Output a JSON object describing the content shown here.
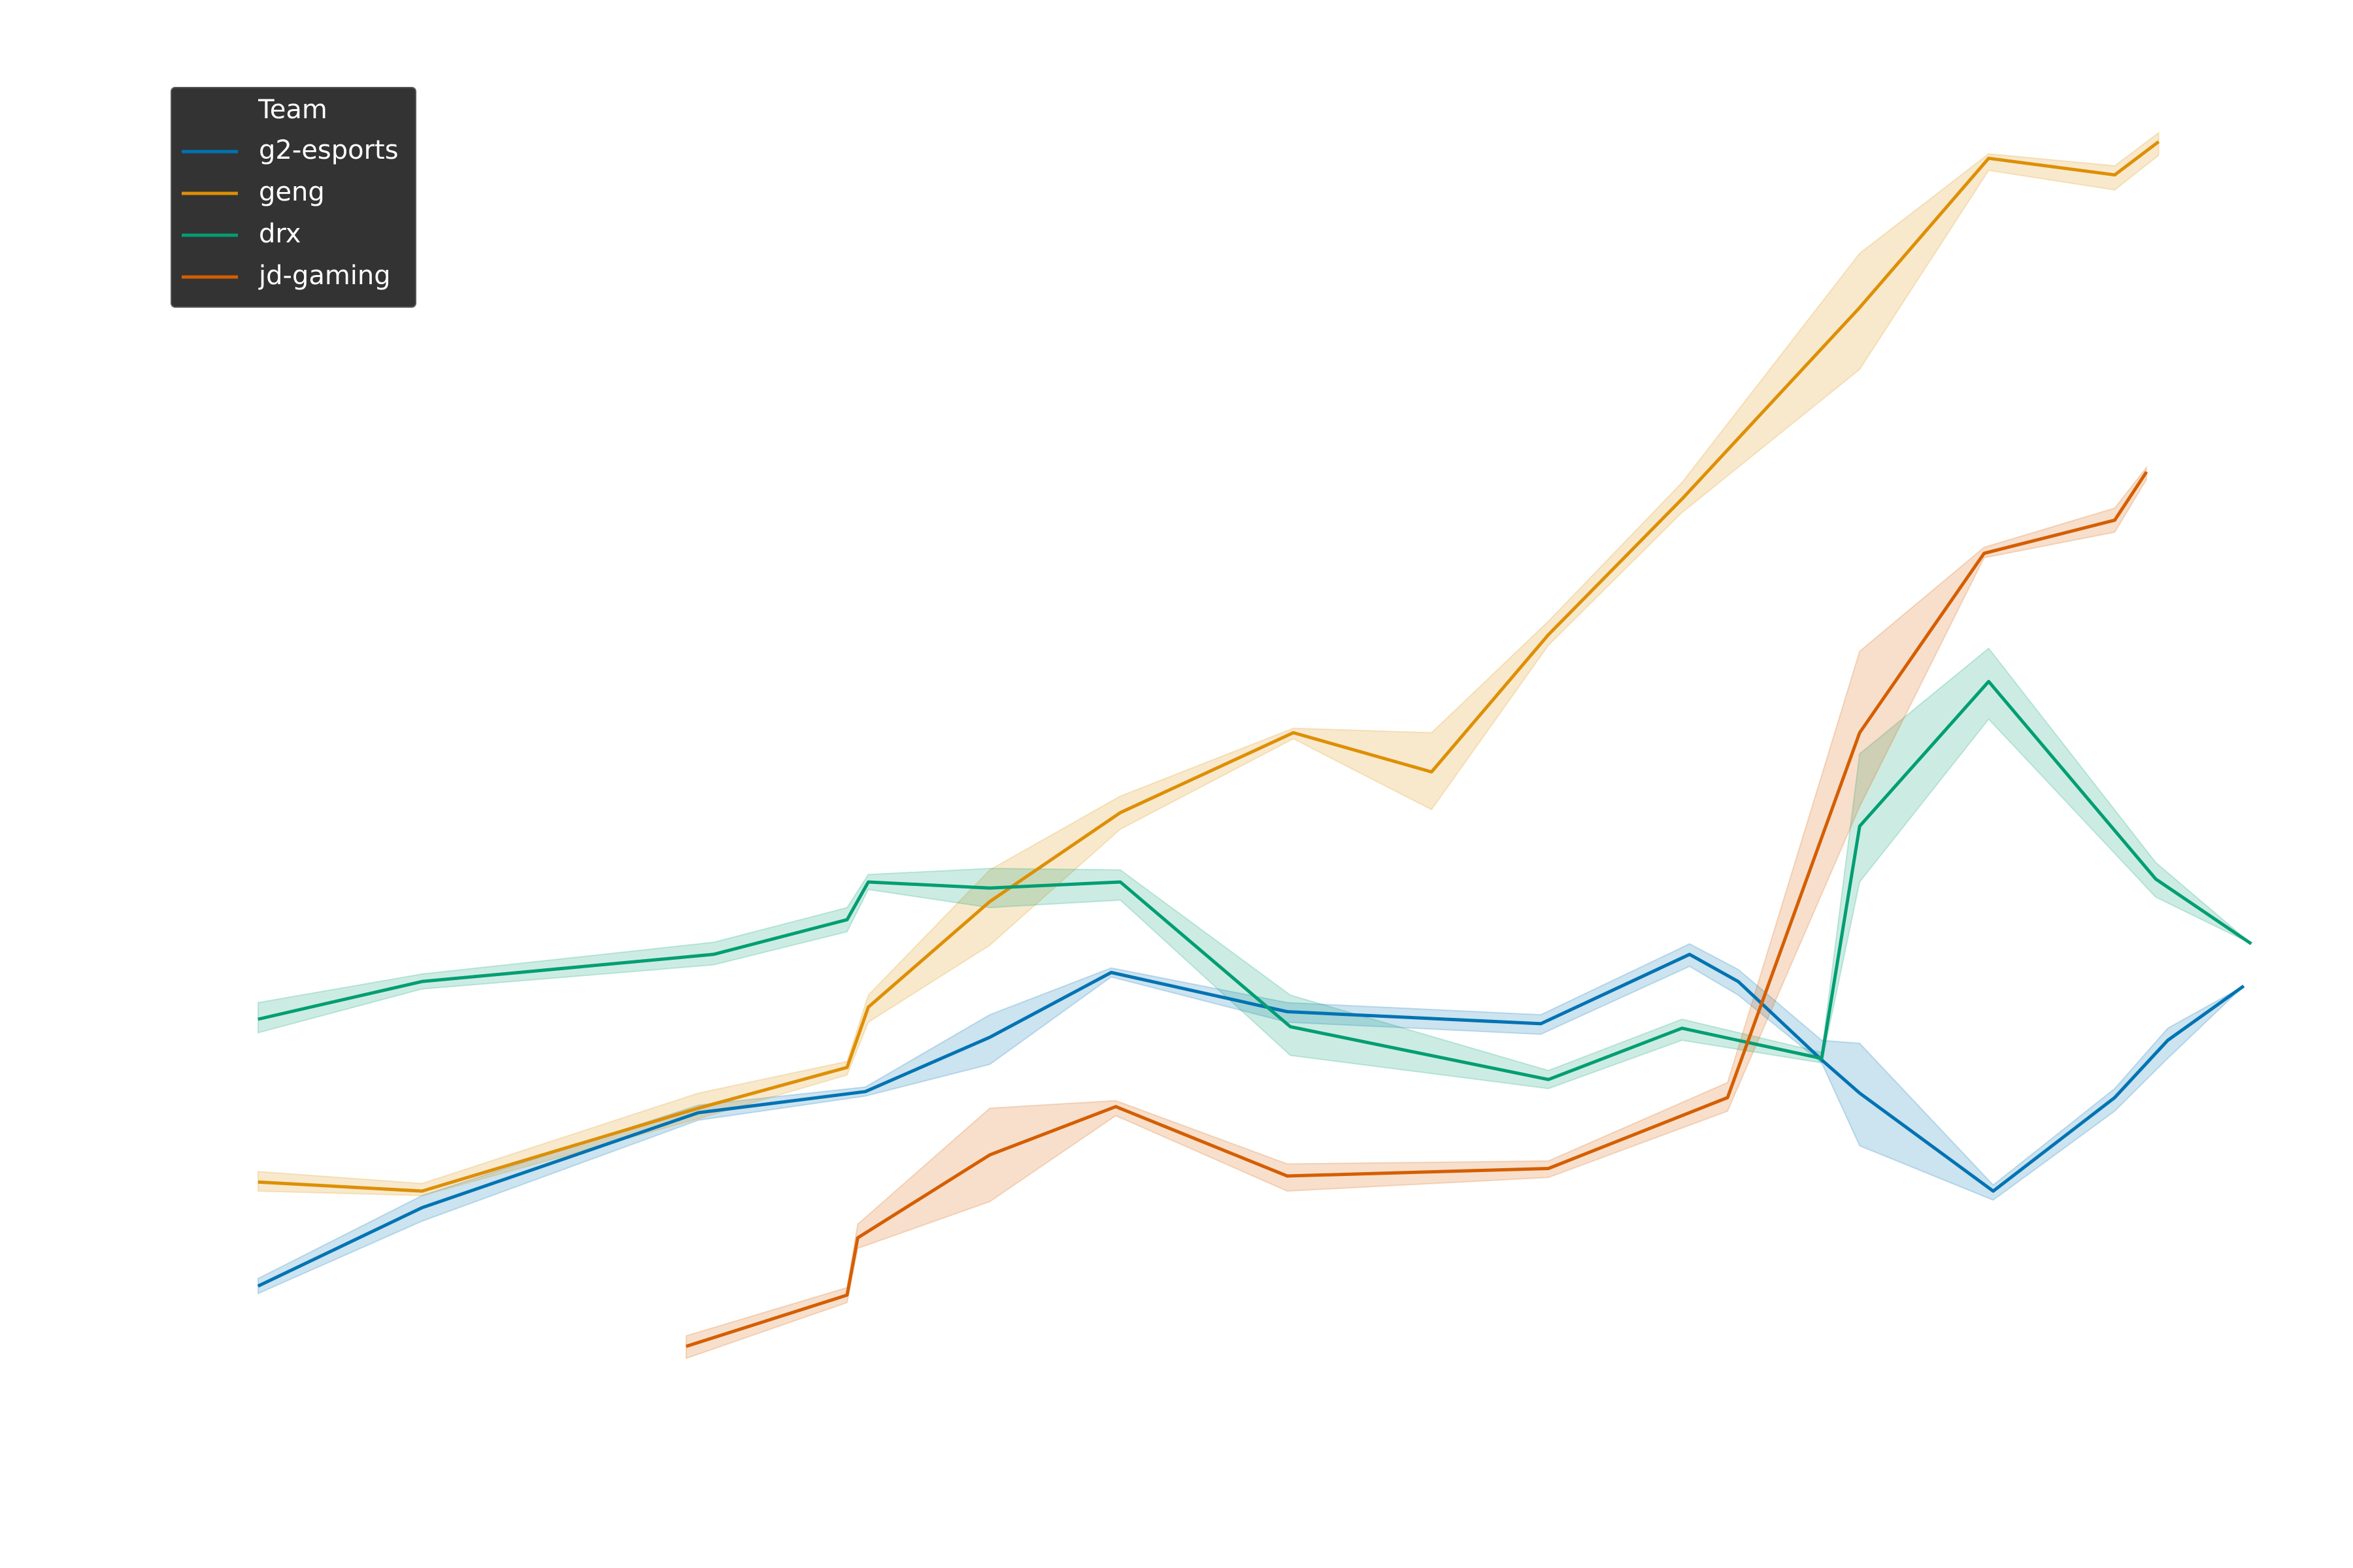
{
  "chart_data": {
    "type": "line",
    "xlim": [
      0,
      1550
    ],
    "ylim": [
      0,
      1040
    ],
    "legend": {
      "title": "Team",
      "loc": "upper left"
    },
    "series": [
      {
        "name": "g2-esports",
        "color": "#0173b2",
        "x": [
          170,
          278,
          460,
          570,
          652,
          732,
          848,
          1015,
          1113,
          1145,
          1200,
          1225,
          1313,
          1393,
          1428,
          1478
        ],
        "values": [
          187,
          239,
          302,
          316,
          352,
          395,
          369,
          361,
          407,
          389,
          337,
          315,
          250,
          312,
          350,
          386
        ],
        "upper": [
          192,
          247,
          307,
          319,
          367,
          398,
          375,
          367,
          414,
          397,
          350,
          348,
          254,
          318,
          358,
          386
        ],
        "lower": [
          182,
          230,
          297,
          313,
          334,
          392,
          362,
          354,
          399,
          380,
          335,
          280,
          244,
          303,
          338,
          386
        ]
      },
      {
        "name": "geng",
        "color": "#de8f05",
        "x": [
          170,
          278,
          460,
          558,
          572,
          652,
          738,
          852,
          943,
          1020,
          1108,
          1225,
          1310,
          1393,
          1422
        ],
        "values": [
          256,
          250,
          305,
          332,
          372,
          442,
          501,
          554,
          528,
          619,
          709,
          836,
          935,
          924,
          946
        ],
        "upper": [
          263,
          255,
          315,
          336,
          380,
          463,
          512,
          557,
          554,
          628,
          720,
          872,
          938,
          930,
          952
        ],
        "lower": [
          250,
          247,
          298,
          327,
          362,
          413,
          490,
          550,
          503,
          612,
          700,
          795,
          927,
          914,
          937
        ]
      },
      {
        "name": "drx",
        "color": "#029e73",
        "x": [
          170,
          278,
          470,
          558,
          572,
          652,
          738,
          850,
          1020,
          1108,
          1200,
          1225,
          1310,
          1420,
          1483
        ],
        "values": [
          364,
          389,
          407,
          430,
          455,
          451,
          455,
          359,
          324,
          358,
          338,
          492,
          588,
          457,
          414
        ],
        "upper": [
          375,
          394,
          415,
          438,
          460,
          464,
          463,
          380,
          330,
          364,
          342,
          540,
          610,
          468,
          414
        ],
        "lower": [
          355,
          384,
          400,
          422,
          450,
          438,
          443,
          340,
          318,
          350,
          335,
          455,
          563,
          445,
          414
        ]
      },
      {
        "name": "jd-gaming",
        "color": "#d55e00",
        "x": [
          452,
          558,
          565,
          652,
          735,
          848,
          1020,
          1138,
          1225,
          1307,
          1393,
          1414
        ],
        "values": [
          147,
          181,
          219,
          274,
          306,
          260,
          265,
          312,
          554,
          673,
          695,
          727
        ],
        "upper": [
          154,
          186,
          228,
          305,
          310,
          268,
          270,
          322,
          608,
          677,
          703,
          730
        ],
        "lower": [
          139,
          176,
          212,
          243,
          300,
          250,
          259,
          303,
          505,
          670,
          687,
          722
        ]
      }
    ]
  }
}
